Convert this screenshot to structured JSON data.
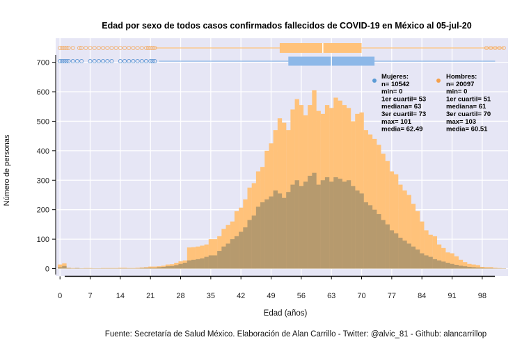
{
  "chart_data": {
    "type": "bar",
    "title": "Edad por sexo de todos casos confirmados fallecidos de COVID-19 en México al 05-jul-20",
    "xlabel": "Edad (años)",
    "ylabel": "Número de personas",
    "caption": "Fuente: Secretaría de Salud México. Elaboración de Alan Carrillo - Twitter: @alvic_81 - Github: alancarrillop",
    "xlim": [
      -1,
      104
    ],
    "ylim": [
      -20,
      725
    ],
    "xticks": [
      "0",
      "7",
      "14",
      "21",
      "28",
      "35",
      "42",
      "49",
      "56",
      "63",
      "70",
      "77",
      "84",
      "91",
      "98"
    ],
    "yticks": [
      "0",
      "100",
      "200",
      "300",
      "400",
      "500",
      "600",
      "700"
    ],
    "x": [
      0,
      1,
      2,
      3,
      4,
      5,
      6,
      7,
      8,
      9,
      10,
      11,
      12,
      13,
      14,
      15,
      16,
      17,
      18,
      19,
      20,
      21,
      22,
      23,
      24,
      25,
      26,
      27,
      28,
      29,
      30,
      31,
      32,
      33,
      34,
      35,
      36,
      37,
      38,
      39,
      40,
      41,
      42,
      43,
      44,
      45,
      46,
      47,
      48,
      49,
      50,
      51,
      52,
      53,
      54,
      55,
      56,
      57,
      58,
      59,
      60,
      61,
      62,
      63,
      64,
      65,
      66,
      67,
      68,
      69,
      70,
      71,
      72,
      73,
      74,
      75,
      76,
      77,
      78,
      79,
      80,
      81,
      82,
      83,
      84,
      85,
      86,
      87,
      88,
      89,
      90,
      91,
      92,
      93,
      94,
      95,
      96,
      97,
      98,
      99,
      100,
      101,
      102,
      103
    ],
    "series": [
      {
        "name": "Hombres",
        "color": "#FFC27A",
        "values": [
          14,
          18,
          3,
          2,
          2,
          1,
          2,
          2,
          1,
          1,
          2,
          2,
          2,
          2,
          3,
          3,
          2,
          2,
          3,
          4,
          5,
          7,
          7,
          8,
          10,
          14,
          15,
          20,
          25,
          28,
          72,
          73,
          75,
          78,
          82,
          100,
          100,
          110,
          135,
          148,
          160,
          195,
          207,
          235,
          275,
          290,
          330,
          345,
          400,
          425,
          470,
          510,
          495,
          470,
          540,
          575,
          555,
          520,
          555,
          605,
          535,
          525,
          555,
          545,
          580,
          570,
          555,
          545,
          500,
          525,
          530,
          470,
          455,
          440,
          420,
          390,
          365,
          330,
          320,
          285,
          265,
          250,
          220,
          195,
          160,
          130,
          115,
          110,
          82,
          70,
          55,
          52,
          42,
          30,
          22,
          16,
          14,
          12,
          6,
          5,
          5,
          3,
          2,
          1
        ]
      },
      {
        "name": "Mujeres",
        "color": "#B69A6E",
        "values": [
          5,
          9,
          2,
          1,
          2,
          1,
          1,
          1,
          1,
          1,
          1,
          1,
          1,
          1,
          1,
          1,
          1,
          1,
          1,
          2,
          3,
          3,
          3,
          5,
          6,
          8,
          9,
          12,
          16,
          20,
          28,
          30,
          32,
          35,
          40,
          45,
          45,
          60,
          75,
          85,
          100,
          110,
          125,
          140,
          165,
          180,
          210,
          225,
          235,
          245,
          265,
          255,
          240,
          260,
          285,
          300,
          280,
          295,
          315,
          325,
          285,
          300,
          310,
          295,
          310,
          305,
          295,
          300,
          280,
          265,
          255,
          225,
          215,
          200,
          185,
          165,
          150,
          130,
          120,
          105,
          95,
          85,
          75,
          65,
          52,
          45,
          40,
          32,
          28,
          24,
          20,
          16,
          13,
          10,
          8,
          6,
          5,
          4,
          3,
          2,
          2,
          1,
          1,
          1
        ]
      }
    ],
    "boxplots": [
      {
        "name": "Hombres",
        "color": "#FFC27A",
        "min": 0,
        "q1": 51,
        "median": 61,
        "q3": 70,
        "max": 103
      },
      {
        "name": "Mujeres",
        "color": "#8DB8E8",
        "min": 0,
        "q1": 53,
        "median": 63,
        "q3": 73,
        "max": 101
      }
    ],
    "stats_text": [
      [
        "Mujeres:",
        "n= 10542",
        "min= 0",
        "1er cuartil= 53",
        "mediana= 63",
        "3er cuartil= 73",
        "max= 101",
        "media= 62.49"
      ],
      [
        "Hombres:",
        "n= 20097",
        "min= 0",
        "1er cuartil= 51",
        "mediana= 61",
        "3er cuartil= 70",
        "max= 103",
        "media= 60.51"
      ]
    ],
    "legend_colors": [
      "#5B9BD5",
      "#F5A04A"
    ],
    "panel_background": "#E6E6F5",
    "grid": true
  }
}
